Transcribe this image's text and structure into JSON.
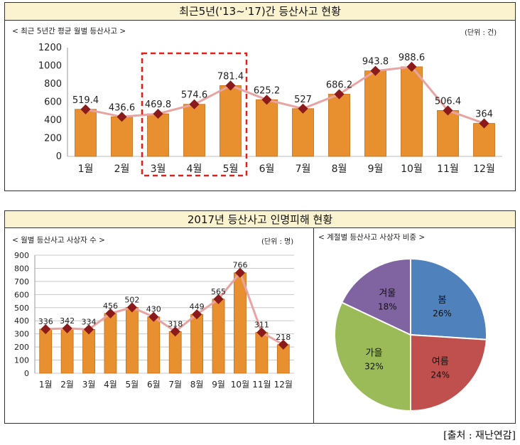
{
  "top": {
    "title": "최근5년('13~'17)간 등산사고 현황",
    "subtitle": "< 최근 5년간 평균 월별 등산사고 >",
    "unit": "(단위 : 건)"
  },
  "bottom": {
    "title": "2017년 등산사고 인명피해 현황",
    "left_subtitle": "< 월별 등산사고 사상자 수 >",
    "left_unit": "(단위 : 명)",
    "right_subtitle": "< 계절별 등산사고 사상자 비중 >"
  },
  "source": "[출처 : 재난연감]",
  "colors": {
    "bar": "#e8902f",
    "bar_edge": "#c46d14",
    "line": "#e8a3a3",
    "marker": "#8b1a1a",
    "highlight": "#e0201a",
    "title_bg": "#fbf3cf"
  },
  "chart_data": [
    {
      "type": "bar",
      "categories": [
        "1월",
        "2월",
        "3월",
        "4월",
        "5월",
        "6월",
        "7월",
        "8월",
        "9월",
        "10월",
        "11월",
        "12월"
      ],
      "values": [
        519.4,
        436.6,
        469.8,
        574.6,
        781.4,
        625.2,
        527,
        686.2,
        943.8,
        988.6,
        506.4,
        364
      ],
      "value_labels": [
        "519.4",
        "436.6",
        "469.8",
        "574.6",
        "781.4",
        "625.2",
        "527",
        "686.2",
        "943.8",
        "988.6",
        "506.4",
        "364"
      ],
      "ylim": [
        0,
        1200
      ],
      "yticks": [
        0,
        200,
        400,
        600,
        800,
        1000,
        1200
      ],
      "overlay": "line-with-markers",
      "highlight_categories": [
        "3월",
        "4월",
        "5월"
      ],
      "grid": false
    },
    {
      "type": "bar",
      "categories": [
        "1월",
        "2월",
        "3월",
        "4월",
        "5월",
        "6월",
        "7월",
        "8월",
        "9월",
        "10월",
        "11월",
        "12월"
      ],
      "values": [
        336,
        342,
        334,
        456,
        502,
        430,
        318,
        449,
        565,
        766,
        311,
        218
      ],
      "value_labels": [
        "336",
        "342",
        "334",
        "456",
        "502",
        "430",
        "318",
        "449",
        "565",
        "766",
        "311",
        "218"
      ],
      "ylim": [
        0,
        900
      ],
      "yticks": [
        0,
        100,
        200,
        300,
        400,
        500,
        600,
        700,
        800,
        900
      ],
      "overlay": "line-with-markers",
      "grid": true
    },
    {
      "type": "pie",
      "slices": [
        {
          "label": "봄",
          "value": 26,
          "text": "26%",
          "color": "#4f81bd"
        },
        {
          "label": "여름",
          "value": 24,
          "text": "24%",
          "color": "#c0504d"
        },
        {
          "label": "가을",
          "value": 32,
          "text": "32%",
          "color": "#9bbb59"
        },
        {
          "label": "겨울",
          "value": 18,
          "text": "18%",
          "color": "#8064a2"
        }
      ]
    }
  ]
}
